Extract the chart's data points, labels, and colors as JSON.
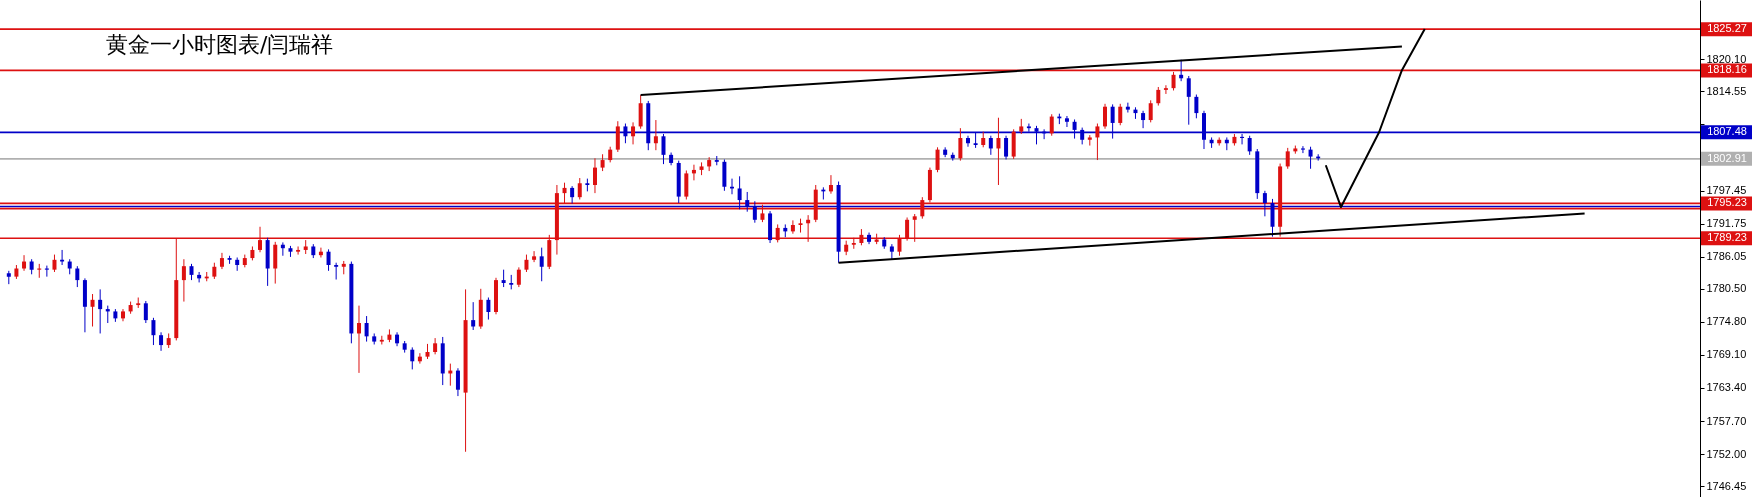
{
  "chart_data": {
    "type": "candlestick",
    "title": "黄金一小时图表/闫瑞祥",
    "categories": [
      null,
      null,
      null,
      null,
      null,
      null,
      null,
      null,
      null,
      null,
      null,
      null,
      null,
      null,
      null,
      null,
      null,
      null,
      null,
      null,
      null,
      null,
      null,
      null,
      null,
      null,
      null,
      null,
      null,
      null,
      null,
      null,
      null,
      null,
      null,
      null,
      null,
      null,
      null,
      null,
      null,
      null,
      null,
      null,
      null,
      null,
      null,
      null,
      null,
      null,
      null,
      null,
      null,
      null,
      null,
      null,
      null,
      null,
      null,
      null,
      null,
      null,
      null,
      null,
      null,
      null,
      null,
      null,
      null,
      null,
      null,
      null,
      null,
      null,
      null,
      null,
      null,
      null,
      null,
      null,
      null,
      null,
      null,
      null,
      null,
      null,
      null,
      null,
      null,
      null,
      null,
      null,
      null,
      null,
      null,
      null,
      null,
      null,
      null,
      null,
      null,
      null,
      null,
      null,
      null,
      null,
      null,
      null,
      null,
      null,
      null,
      null,
      null,
      null,
      null,
      null,
      null,
      null,
      null,
      null,
      null,
      null,
      null,
      null,
      null,
      null,
      null,
      null,
      null,
      null,
      null,
      null,
      null,
      null,
      null,
      null,
      null,
      null,
      null,
      null,
      null,
      null,
      null,
      null,
      null,
      null,
      null,
      null,
      null,
      null,
      null,
      null,
      null,
      null,
      null,
      null,
      null,
      null,
      null,
      null,
      null,
      null,
      null,
      null,
      null,
      null,
      null,
      null,
      null,
      null,
      null,
      null,
      null,
      null,
      null,
      null,
      null,
      null,
      null,
      null,
      null,
      null,
      null,
      null,
      null,
      null,
      null,
      null,
      null,
      null,
      null,
      null,
      null,
      null,
      null,
      null,
      null,
      null,
      null,
      null,
      null,
      null,
      null,
      null,
      null,
      null,
      null,
      null,
      null,
      null,
      null,
      null,
      null,
      null,
      null,
      null,
      null,
      null,
      null,
      null,
      null,
      null
    ],
    "ohlc": [
      [
        1783.2,
        1783.6,
        1781.3,
        1782.6
      ],
      [
        1782.6,
        1784.6,
        1782.2,
        1784.0
      ],
      [
        1784.0,
        1786.3,
        1783.6,
        1785.2
      ],
      [
        1785.2,
        1785.6,
        1783.0,
        1783.8
      ],
      [
        1783.8,
        1784.8,
        1782.4,
        1784.0
      ],
      [
        1784.0,
        1784.5,
        1782.6,
        1783.8
      ],
      [
        1783.8,
        1786.4,
        1783.4,
        1785.5
      ],
      [
        1785.5,
        1787.2,
        1784.6,
        1785.2
      ],
      [
        1785.2,
        1785.6,
        1783.0,
        1784.0
      ],
      [
        1784.0,
        1784.4,
        1780.8,
        1782.0
      ],
      [
        1782.0,
        1782.3,
        1773.0,
        1777.4
      ],
      [
        1777.4,
        1779.6,
        1774.0,
        1778.6
      ],
      [
        1778.6,
        1780.4,
        1772.8,
        1777.0
      ],
      [
        1777.0,
        1777.6,
        1774.6,
        1776.6
      ],
      [
        1776.6,
        1777.0,
        1774.8,
        1775.4
      ],
      [
        1775.4,
        1777.0,
        1774.9,
        1776.6
      ],
      [
        1776.6,
        1778.3,
        1776.2,
        1777.7
      ],
      [
        1777.7,
        1779.0,
        1777.2,
        1778.0
      ],
      [
        1778.0,
        1778.4,
        1774.6,
        1775.1
      ],
      [
        1775.1,
        1775.5,
        1770.8,
        1772.5
      ],
      [
        1772.5,
        1773.0,
        1769.8,
        1770.8
      ],
      [
        1770.8,
        1772.8,
        1770.3,
        1772.0
      ],
      [
        1772.0,
        1789.2,
        1771.6,
        1782.0
      ],
      [
        1782.0,
        1785.6,
        1778.3,
        1784.4
      ],
      [
        1784.4,
        1784.8,
        1782.0,
        1782.9
      ],
      [
        1782.9,
        1783.4,
        1781.6,
        1782.3
      ],
      [
        1782.3,
        1783.4,
        1781.8,
        1782.6
      ],
      [
        1782.6,
        1785.0,
        1782.2,
        1784.3
      ],
      [
        1784.3,
        1786.7,
        1783.9,
        1785.8
      ],
      [
        1785.8,
        1786.2,
        1784.8,
        1785.5
      ],
      [
        1785.5,
        1785.9,
        1783.6,
        1784.6
      ],
      [
        1784.6,
        1786.4,
        1784.2,
        1785.8
      ],
      [
        1785.8,
        1787.8,
        1785.4,
        1787.2
      ],
      [
        1787.2,
        1791.2,
        1786.8,
        1788.9
      ],
      [
        1788.9,
        1789.3,
        1781.0,
        1784.0
      ],
      [
        1784.0,
        1788.6,
        1781.4,
        1788.1
      ],
      [
        1788.1,
        1788.5,
        1786.2,
        1787.5
      ],
      [
        1787.5,
        1787.9,
        1786.0,
        1786.9
      ],
      [
        1786.9,
        1787.8,
        1786.4,
        1787.2
      ],
      [
        1787.2,
        1788.9,
        1786.5,
        1787.8
      ],
      [
        1787.8,
        1788.2,
        1785.8,
        1786.3
      ],
      [
        1786.3,
        1787.6,
        1785.9,
        1786.9
      ],
      [
        1786.9,
        1787.3,
        1783.6,
        1784.6
      ],
      [
        1784.6,
        1785.0,
        1782.1,
        1784.3
      ],
      [
        1784.3,
        1785.3,
        1783.0,
        1784.8
      ],
      [
        1784.8,
        1785.2,
        1771.1,
        1772.8
      ],
      [
        1772.8,
        1777.6,
        1766.0,
        1774.6
      ],
      [
        1774.6,
        1775.8,
        1771.4,
        1772.3
      ],
      [
        1772.3,
        1772.8,
        1770.9,
        1771.4
      ],
      [
        1771.4,
        1772.4,
        1770.9,
        1771.7
      ],
      [
        1771.7,
        1773.5,
        1771.3,
        1772.6
      ],
      [
        1772.6,
        1773.0,
        1770.6,
        1771.1
      ],
      [
        1771.1,
        1771.5,
        1769.5,
        1770.0
      ],
      [
        1770.0,
        1770.4,
        1766.6,
        1768.0
      ],
      [
        1768.0,
        1769.4,
        1767.6,
        1768.8
      ],
      [
        1768.8,
        1771.0,
        1768.4,
        1769.6
      ],
      [
        1769.6,
        1772.0,
        1769.2,
        1771.1
      ],
      [
        1771.1,
        1772.2,
        1763.9,
        1765.9
      ],
      [
        1765.9,
        1767.6,
        1763.8,
        1766.4
      ],
      [
        1766.4,
        1766.8,
        1762.0,
        1763.1
      ],
      [
        1762.6,
        1780.4,
        1752.4,
        1775.1
      ],
      [
        1775.1,
        1778.2,
        1773.4,
        1774.0
      ],
      [
        1774.0,
        1780.5,
        1773.6,
        1778.6
      ],
      [
        1778.6,
        1779.0,
        1775.2,
        1776.5
      ],
      [
        1776.5,
        1782.4,
        1776.1,
        1782.0
      ],
      [
        1782.0,
        1783.8,
        1780.8,
        1781.5
      ],
      [
        1781.5,
        1782.9,
        1780.4,
        1781.2
      ],
      [
        1781.2,
        1784.2,
        1780.8,
        1783.8
      ],
      [
        1783.8,
        1786.4,
        1783.4,
        1785.5
      ],
      [
        1785.5,
        1787.0,
        1785.1,
        1786.1
      ],
      [
        1786.1,
        1787.6,
        1781.8,
        1784.3
      ],
      [
        1784.3,
        1789.8,
        1783.9,
        1788.9
      ],
      [
        1788.9,
        1798.4,
        1786.4,
        1797.0
      ],
      [
        1797.0,
        1798.8,
        1795.2,
        1797.9
      ],
      [
        1797.9,
        1798.2,
        1795.2,
        1796.3
      ],
      [
        1796.3,
        1799.6,
        1795.9,
        1798.7
      ],
      [
        1798.7,
        1799.5,
        1797.3,
        1798.4
      ],
      [
        1798.4,
        1803.0,
        1797.0,
        1801.4
      ],
      [
        1801.4,
        1803.7,
        1800.8,
        1802.7
      ],
      [
        1802.7,
        1805.0,
        1802.3,
        1804.5
      ],
      [
        1804.5,
        1809.4,
        1804.1,
        1808.5
      ],
      [
        1808.5,
        1809.0,
        1805.6,
        1806.8
      ],
      [
        1806.8,
        1809.2,
        1805.4,
        1808.5
      ],
      [
        1808.5,
        1813.9,
        1808.1,
        1812.5
      ],
      [
        1812.5,
        1812.9,
        1804.4,
        1805.6
      ],
      [
        1805.6,
        1809.6,
        1804.4,
        1806.8
      ],
      [
        1806.8,
        1807.2,
        1802.0,
        1803.6
      ],
      [
        1803.6,
        1804.0,
        1801.8,
        1802.2
      ],
      [
        1802.2,
        1802.6,
        1795.3,
        1796.4
      ],
      [
        1796.4,
        1800.9,
        1795.9,
        1800.4
      ],
      [
        1800.4,
        1801.9,
        1799.2,
        1801.0
      ],
      [
        1801.0,
        1802.3,
        1800.1,
        1801.6
      ],
      [
        1801.6,
        1803.2,
        1800.8,
        1802.7
      ],
      [
        1802.7,
        1803.4,
        1801.8,
        1802.4
      ],
      [
        1802.4,
        1802.8,
        1797.4,
        1798.1
      ],
      [
        1798.1,
        1799.5,
        1796.8,
        1797.8
      ],
      [
        1797.8,
        1799.9,
        1794.2,
        1795.8
      ],
      [
        1795.8,
        1797.2,
        1793.8,
        1794.7
      ],
      [
        1794.7,
        1795.6,
        1791.9,
        1792.4
      ],
      [
        1792.4,
        1795.0,
        1792.0,
        1793.5
      ],
      [
        1793.5,
        1793.9,
        1788.4,
        1788.9
      ],
      [
        1788.9,
        1791.6,
        1788.5,
        1791.0
      ],
      [
        1791.0,
        1791.6,
        1789.4,
        1790.4
      ],
      [
        1790.4,
        1792.3,
        1790.0,
        1791.5
      ],
      [
        1791.5,
        1792.6,
        1790.2,
        1791.8
      ],
      [
        1791.8,
        1793.2,
        1788.6,
        1792.4
      ],
      [
        1792.4,
        1798.4,
        1792.0,
        1797.6
      ],
      [
        1797.6,
        1798.0,
        1795.9,
        1797.3
      ],
      [
        1797.3,
        1800.1,
        1796.9,
        1798.4
      ],
      [
        1798.4,
        1799.0,
        1785.0,
        1786.9
      ],
      [
        1786.9,
        1788.8,
        1786.3,
        1788.1
      ],
      [
        1788.1,
        1789.3,
        1787.4,
        1788.4
      ],
      [
        1788.4,
        1790.8,
        1788.0,
        1789.8
      ],
      [
        1789.8,
        1790.2,
        1788.2,
        1788.6
      ],
      [
        1788.6,
        1790.0,
        1788.2,
        1789.0
      ],
      [
        1789.0,
        1789.4,
        1787.4,
        1787.8
      ],
      [
        1787.8,
        1788.2,
        1785.6,
        1786.9
      ],
      [
        1786.9,
        1789.8,
        1786.2,
        1789.2
      ],
      [
        1789.2,
        1792.8,
        1788.8,
        1792.4
      ],
      [
        1792.4,
        1793.4,
        1788.6,
        1793.0
      ],
      [
        1793.0,
        1796.3,
        1792.6,
        1795.8
      ],
      [
        1795.8,
        1801.4,
        1795.4,
        1801.0
      ],
      [
        1801.0,
        1804.9,
        1800.6,
        1804.5
      ],
      [
        1804.5,
        1804.9,
        1803.2,
        1803.6
      ],
      [
        1803.6,
        1804.0,
        1802.6,
        1803.0
      ],
      [
        1803.0,
        1808.2,
        1802.6,
        1806.5
      ],
      [
        1806.5,
        1806.9,
        1805.0,
        1805.6
      ],
      [
        1805.6,
        1807.4,
        1804.8,
        1805.3
      ],
      [
        1805.3,
        1807.6,
        1804.9,
        1806.5
      ],
      [
        1806.5,
        1806.9,
        1803.6,
        1804.7
      ],
      [
        1804.7,
        1810.0,
        1798.4,
        1806.5
      ],
      [
        1806.5,
        1806.9,
        1802.8,
        1803.3
      ],
      [
        1803.3,
        1808.0,
        1802.9,
        1807.6
      ],
      [
        1807.6,
        1809.8,
        1807.2,
        1808.5
      ],
      [
        1808.5,
        1809.0,
        1807.6,
        1808.2
      ],
      [
        1808.2,
        1808.6,
        1805.4,
        1807.6
      ],
      [
        1807.6,
        1808.0,
        1806.3,
        1807.3
      ],
      [
        1807.3,
        1810.6,
        1806.9,
        1810.2
      ],
      [
        1810.2,
        1810.7,
        1808.9,
        1809.9
      ],
      [
        1809.9,
        1810.3,
        1808.4,
        1809.3
      ],
      [
        1809.3,
        1809.7,
        1806.4,
        1807.9
      ],
      [
        1807.9,
        1808.3,
        1805.4,
        1806.2
      ],
      [
        1806.2,
        1807.0,
        1805.2,
        1806.6
      ],
      [
        1806.6,
        1809.0,
        1802.7,
        1808.5
      ],
      [
        1808.5,
        1812.4,
        1808.1,
        1811.9
      ],
      [
        1811.9,
        1812.3,
        1806.4,
        1809.1
      ],
      [
        1809.1,
        1812.4,
        1808.7,
        1811.9
      ],
      [
        1811.9,
        1812.6,
        1810.9,
        1811.4
      ],
      [
        1811.4,
        1811.8,
        1809.8,
        1810.8
      ],
      [
        1810.8,
        1811.2,
        1808.2,
        1809.6
      ],
      [
        1809.6,
        1813.0,
        1809.2,
        1812.5
      ],
      [
        1812.5,
        1815.3,
        1812.1,
        1814.8
      ],
      [
        1814.8,
        1815.6,
        1814.1,
        1815.1
      ],
      [
        1815.1,
        1817.9,
        1814.7,
        1817.4
      ],
      [
        1817.4,
        1820.0,
        1816.3,
        1816.8
      ],
      [
        1816.8,
        1817.2,
        1808.8,
        1813.6
      ],
      [
        1813.6,
        1814.0,
        1809.9,
        1810.8
      ],
      [
        1810.8,
        1811.2,
        1804.6,
        1806.2
      ],
      [
        1806.2,
        1806.6,
        1804.8,
        1805.6
      ],
      [
        1805.6,
        1806.6,
        1805.2,
        1806.2
      ],
      [
        1806.2,
        1806.6,
        1804.4,
        1805.6
      ],
      [
        1805.6,
        1807.2,
        1805.2,
        1806.7
      ],
      [
        1806.7,
        1807.2,
        1805.4,
        1806.5
      ],
      [
        1806.5,
        1806.9,
        1803.6,
        1804.2
      ],
      [
        1804.2,
        1804.6,
        1796.0,
        1797.0
      ],
      [
        1797.0,
        1797.4,
        1793.0,
        1795.3
      ],
      [
        1795.3,
        1796.0,
        1789.5,
        1791.2
      ],
      [
        1791.2,
        1802.1,
        1789.5,
        1801.6
      ],
      [
        1801.6,
        1804.8,
        1801.2,
        1804.2
      ],
      [
        1804.2,
        1805.2,
        1803.8,
        1804.7
      ],
      [
        1804.7,
        1805.1,
        1803.9,
        1804.5
      ],
      [
        1804.5,
        1805.0,
        1801.2,
        1803.3
      ],
      [
        1803.3,
        1803.7,
        1802.6,
        1803.0
      ],
      null,
      null,
      null,
      null,
      null,
      null,
      null,
      null,
      null,
      null,
      null,
      null,
      null,
      null,
      null,
      null,
      null,
      null,
      null,
      null,
      null,
      null,
      null,
      null,
      null,
      null,
      null,
      null,
      null,
      null,
      null,
      null,
      null,
      null,
      null,
      null,
      null,
      null,
      null,
      null,
      null,
      null,
      null,
      null,
      null,
      null,
      null,
      null,
      null
    ],
    "colors": [
      "#0000c8",
      "#dd1111",
      "#dd1111",
      "#0000c8",
      "#dd1111",
      "#0000c8",
      "#dd1111",
      "#0000c8",
      "#0000c8",
      "#0000c8",
      "#0000c8",
      "#dd1111",
      "#0000c8",
      "#0000c8",
      "#0000c8",
      "#dd1111",
      "#dd1111",
      "#dd1111",
      "#0000c8",
      "#0000c8",
      "#0000c8",
      "#dd1111",
      "#dd1111",
      "#dd1111",
      "#0000c8",
      "#0000c8",
      "#dd1111",
      "#dd1111",
      "#dd1111",
      "#0000c8",
      "#0000c8",
      "#dd1111",
      "#dd1111",
      "#dd1111",
      "#0000c8",
      "#dd1111",
      "#0000c8",
      "#0000c8",
      "#dd1111",
      "#dd1111",
      "#0000c8",
      "#dd1111",
      "#0000c8",
      "#0000c8",
      "#dd1111",
      "#0000c8",
      "#dd1111",
      "#0000c8",
      "#0000c8",
      "#dd1111",
      "#dd1111",
      "#0000c8",
      "#0000c8",
      "#0000c8",
      "#dd1111",
      "#dd1111",
      "#dd1111",
      "#0000c8",
      "#dd1111",
      "#0000c8",
      "#dd1111",
      "#0000c8",
      "#dd1111",
      "#0000c8",
      "#dd1111",
      "#0000c8",
      "#0000c8",
      "#dd1111",
      "#dd1111",
      "#dd1111",
      "#0000c8",
      "#dd1111",
      "#dd1111",
      "#dd1111",
      "#0000c8",
      "#dd1111",
      "#0000c8",
      "#dd1111",
      "#dd1111",
      "#dd1111",
      "#dd1111",
      "#0000c8",
      "#dd1111",
      "#dd1111",
      "#0000c8",
      "#dd1111",
      "#0000c8",
      "#0000c8",
      "#0000c8",
      "#dd1111",
      "#dd1111",
      "#dd1111",
      "#dd1111",
      "#0000c8",
      "#0000c8",
      "#0000c8",
      "#0000c8",
      "#0000c8",
      "#0000c8",
      "#dd1111",
      "#0000c8",
      "#dd1111",
      "#0000c8",
      "#dd1111",
      "#dd1111",
      "#dd1111",
      "#dd1111",
      "#0000c8",
      "#dd1111",
      "#0000c8",
      "#dd1111",
      "#dd1111",
      "#dd1111",
      "#0000c8",
      "#dd1111",
      "#0000c8",
      "#0000c8",
      "#dd1111",
      "#dd1111",
      "#dd1111",
      "#dd1111",
      "#dd1111",
      "#dd1111",
      "#0000c8",
      "#0000c8",
      "#dd1111",
      "#0000c8",
      "#0000c8",
      "#dd1111",
      "#0000c8",
      "#dd1111",
      "#0000c8",
      "#dd1111",
      "#dd1111",
      "#0000c8",
      "#0000c8",
      "#0000c8",
      "#dd1111",
      "#0000c8",
      "#0000c8",
      "#0000c8",
      "#0000c8",
      "#dd1111",
      "#dd1111",
      "#dd1111",
      "#0000c8",
      "#dd1111",
      "#0000c8",
      "#0000c8",
      "#0000c8",
      "#dd1111",
      "#dd1111",
      "#dd1111",
      "#dd1111",
      "#0000c8",
      "#0000c8",
      "#0000c8",
      "#0000c8",
      "#0000c8",
      "#dd1111",
      "#0000c8",
      "#dd1111",
      "#0000c8",
      "#0000c8",
      "#0000c8",
      "#0000c8",
      "#0000c8",
      "#dd1111",
      "#dd1111",
      "#dd1111",
      "#0000c8",
      "#0000c8",
      "#0000c8",
      null,
      null,
      null,
      null,
      null,
      null,
      null,
      null,
      null,
      null,
      null,
      null,
      null,
      null,
      null,
      null,
      null,
      null,
      null,
      null,
      null,
      null,
      null,
      null,
      null,
      null,
      null,
      null,
      null,
      null,
      null,
      null,
      null,
      null,
      null,
      null,
      null,
      null,
      null,
      null,
      null,
      null,
      null,
      null,
      null,
      null,
      null,
      null,
      null
    ],
    "series": [
      {
        "type": "line",
        "color": "#000000",
        "values": [
          null,
          null,
          null,
          null,
          null,
          null,
          null,
          null,
          null,
          null,
          null,
          null,
          null,
          null,
          null,
          null,
          null,
          null,
          null,
          null,
          null,
          null,
          null,
          null,
          null,
          null,
          null,
          null,
          null,
          null,
          null,
          null,
          null,
          null,
          null,
          null,
          null,
          null,
          null,
          null,
          null,
          null,
          null,
          null,
          null,
          null,
          null,
          null,
          null,
          null,
          null,
          null,
          null,
          null,
          null,
          null,
          null,
          null,
          null,
          null,
          null,
          null,
          null,
          null,
          null,
          null,
          null,
          null,
          null,
          null,
          null,
          null,
          null,
          null,
          null,
          null,
          null,
          null,
          null,
          null,
          null,
          null,
          null,
          1813.9,
          null,
          null,
          null,
          null,
          null,
          null,
          null,
          null,
          null,
          null,
          null,
          null,
          null,
          null,
          null,
          null,
          null,
          null,
          null,
          null,
          null,
          null,
          null,
          null,
          null,
          null,
          null,
          null,
          null,
          null,
          null,
          null,
          null,
          null,
          null,
          null,
          null,
          null,
          null,
          null,
          null,
          null,
          null,
          null,
          null,
          null,
          null,
          null,
          null,
          null,
          null,
          null,
          null,
          null,
          null,
          null,
          null,
          null,
          null,
          null,
          null,
          null,
          null,
          null,
          null,
          null,
          null,
          null,
          null,
          null,
          null,
          null,
          null,
          null,
          null,
          null,
          null,
          null,
          null,
          null,
          null,
          null,
          null,
          null,
          null,
          null,
          null,
          null,
          null,
          null,
          null,
          null,
          null,
          null,
          null,
          null,
          null,
          null,
          null,
          1822.3,
          null,
          null,
          null,
          null,
          null,
          null,
          null,
          null,
          null,
          null,
          null,
          null,
          null,
          null,
          null,
          null,
          null,
          null,
          null,
          null,
          null,
          null,
          null,
          null,
          null,
          null,
          null,
          null,
          null,
          null,
          null,
          null,
          null,
          null,
          null,
          null,
          null,
          null
        ]
      },
      {
        "type": "line",
        "color": "#000000",
        "values": [
          null,
          null,
          null,
          null,
          null,
          null,
          null,
          null,
          null,
          null,
          null,
          null,
          null,
          null,
          null,
          null,
          null,
          null,
          null,
          null,
          null,
          null,
          null,
          null,
          null,
          null,
          null,
          null,
          null,
          null,
          null,
          null,
          null,
          null,
          null,
          null,
          null,
          null,
          null,
          null,
          null,
          null,
          null,
          null,
          null,
          null,
          null,
          null,
          null,
          null,
          null,
          null,
          null,
          null,
          null,
          null,
          null,
          null,
          null,
          null,
          null,
          null,
          null,
          null,
          null,
          null,
          null,
          null,
          null,
          null,
          null,
          null,
          null,
          null,
          null,
          null,
          null,
          null,
          null,
          null,
          null,
          null,
          null,
          null,
          null,
          null,
          null,
          null,
          null,
          null,
          null,
          null,
          null,
          null,
          null,
          null,
          null,
          null,
          null,
          null,
          null,
          null,
          null,
          null,
          null,
          null,
          null,
          null,
          null,
          1785.0,
          null,
          null,
          null,
          null,
          null,
          null,
          null,
          null,
          null,
          null,
          null,
          null,
          null,
          null,
          null,
          null,
          null,
          null,
          null,
          null,
          null,
          null,
          null,
          null,
          null,
          null,
          null,
          null,
          null,
          null,
          null,
          null,
          null,
          null,
          null,
          null,
          null,
          null,
          null,
          null,
          null,
          null,
          null,
          null,
          null,
          null,
          null,
          null,
          null,
          null,
          null,
          null,
          null,
          null,
          null,
          null,
          null,
          null,
          null,
          null,
          null,
          null,
          null,
          null,
          null,
          null,
          null,
          null,
          null,
          null,
          null,
          null,
          null,
          null,
          null,
          null,
          null,
          null,
          null,
          null,
          null,
          null,
          null,
          null,
          null,
          null,
          null,
          null,
          null,
          null,
          null,
          null,
          null,
          null,
          null,
          null,
          null,
          1793.5,
          null,
          null,
          null,
          null,
          null,
          null,
          null,
          null,
          null,
          null,
          null,
          null,
          null,
          null
        ]
      },
      {
        "type": "line",
        "color": "#000000",
        "values": [
          null,
          null,
          null,
          null,
          null,
          null,
          null,
          null,
          null,
          null,
          null,
          null,
          null,
          null,
          null,
          null,
          null,
          null,
          null,
          null,
          null,
          null,
          null,
          null,
          null,
          null,
          null,
          null,
          null,
          null,
          null,
          null,
          null,
          null,
          null,
          null,
          null,
          null,
          null,
          null,
          null,
          null,
          null,
          null,
          null,
          null,
          null,
          null,
          null,
          null,
          null,
          null,
          null,
          null,
          null,
          null,
          null,
          null,
          null,
          null,
          null,
          null,
          null,
          null,
          null,
          null,
          null,
          null,
          null,
          null,
          null,
          null,
          null,
          null,
          null,
          null,
          null,
          null,
          null,
          null,
          null,
          null,
          null,
          null,
          null,
          null,
          null,
          null,
          null,
          null,
          null,
          null,
          null,
          null,
          null,
          null,
          null,
          null,
          null,
          null,
          null,
          null,
          null,
          null,
          null,
          null,
          null,
          null,
          null,
          null,
          null,
          null,
          null,
          null,
          null,
          null,
          null,
          null,
          null,
          null,
          null,
          null,
          null,
          null,
          null,
          null,
          null,
          null,
          null,
          null,
          null,
          null,
          null,
          null,
          null,
          null,
          null,
          null,
          null,
          null,
          null,
          null,
          null,
          null,
          null,
          null,
          null,
          null,
          null,
          null,
          null,
          null,
          null,
          null,
          null,
          null,
          null,
          null,
          null,
          null,
          null,
          null,
          null,
          null,
          null,
          null,
          null,
          null,
          null,
          null,
          null,
          null,
          null,
          1801.8,
          null,
          1794.6,
          null,
          null,
          null,
          null,
          1807.5,
          null,
          null,
          1818.2,
          null,
          null,
          1825.3,
          null,
          null,
          null,
          null,
          null,
          null,
          null,
          null,
          null,
          null,
          null,
          null,
          null,
          null,
          null,
          null,
          null,
          null,
          null,
          null,
          null,
          null,
          null,
          null,
          null,
          null,
          null,
          null,
          null,
          null,
          null,
          null,
          null,
          null,
          null
        ]
      }
    ],
    "ref_lines": [
      {
        "axis": "y",
        "value": 1825.27,
        "label": "1825.27",
        "color": "#dd1111"
      },
      {
        "axis": "y",
        "value": 1818.16,
        "label": "1818.16",
        "color": "#dd1111"
      },
      {
        "axis": "y",
        "value": 1807.48,
        "label": "1807.48",
        "color": "#0000c8"
      },
      {
        "axis": "y",
        "value": 1802.91,
        "label": "1802.91",
        "color": "#b0b0b0"
      },
      {
        "axis": "y",
        "value": 1795.23,
        "label": "1795.23",
        "color": "#dd1111"
      },
      {
        "axis": "y",
        "value": 1794.7,
        "label": null,
        "color": "#0000c8"
      },
      {
        "axis": "y",
        "value": 1794.33,
        "label": null,
        "color": "#dd1111"
      },
      {
        "axis": "y",
        "value": 1789.23,
        "label": "1789.23",
        "color": "#dd1111"
      }
    ],
    "ylim": [
      1744.6,
      1830.3
    ],
    "yticks": [
      {
        "value": 1820.1,
        "label": "1820.10"
      },
      1814.55,
      {
        "value": 1808.85,
        "label": null
      },
      1797.45,
      1791.75,
      1786.05,
      {
        "value": 1780.5,
        "label": "1780.50"
      },
      {
        "value": 1774.8,
        "label": "1774.80"
      },
      {
        "value": 1769.1,
        "label": "1769.10"
      },
      {
        "value": 1763.4,
        "label": "1763.40"
      },
      {
        "value": 1757.7,
        "label": "1757.70"
      },
      {
        "value": 1752,
        "label": "1752.00"
      },
      1746.45
    ],
    "tick_labels": "y",
    "grid": false
  }
}
